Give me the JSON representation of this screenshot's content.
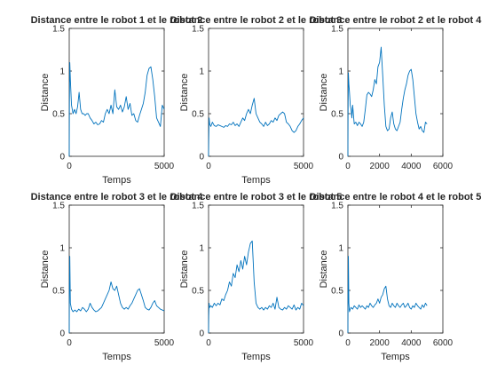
{
  "chart_data": [
    {
      "type": "line",
      "title": "Distance entre le robot 1 et le robot 2",
      "xlabel": "Temps",
      "ylabel": "Distance",
      "xlim": [
        0,
        5000
      ],
      "ylim": [
        0,
        1.5
      ],
      "xticks": [
        "0",
        "5000"
      ],
      "yticks": [
        "0",
        "0.5",
        "1",
        "1.5"
      ],
      "grid": false,
      "series": [
        {
          "color": "#0072bd",
          "x": [
            0,
            10,
            30,
            60,
            120,
            200,
            280,
            360,
            440,
            520,
            600,
            680,
            760,
            840,
            920,
            1000,
            1100,
            1200,
            1300,
            1400,
            1500,
            1600,
            1700,
            1800,
            1900,
            2000,
            2100,
            2200,
            2300,
            2400,
            2500,
            2600,
            2700,
            2800,
            2900,
            3000,
            3100,
            3200,
            3300,
            3400,
            3500,
            3600,
            3700,
            3800,
            3900,
            4000,
            4100,
            4200,
            4300,
            4400,
            4500,
            4600,
            4700,
            4800,
            4900,
            5000
          ],
          "y": [
            0,
            0.6,
            1.1,
            0.9,
            0.6,
            0.5,
            0.55,
            0.5,
            0.58,
            0.75,
            0.55,
            0.5,
            0.5,
            0.48,
            0.5,
            0.5,
            0.45,
            0.42,
            0.38,
            0.4,
            0.37,
            0.38,
            0.42,
            0.4,
            0.5,
            0.55,
            0.5,
            0.6,
            0.5,
            0.78,
            0.58,
            0.55,
            0.6,
            0.52,
            0.58,
            0.7,
            0.55,
            0.62,
            0.48,
            0.5,
            0.42,
            0.4,
            0.48,
            0.55,
            0.62,
            0.75,
            0.95,
            1.03,
            1.05,
            0.9,
            0.7,
            0.45,
            0.4,
            0.35,
            0.6,
            0.55
          ]
        }
      ]
    },
    {
      "type": "line",
      "title": "Distance entre le robot 2 et le robot 3",
      "xlabel": "Temps",
      "ylabel": "Distance",
      "xlim": [
        0,
        5000
      ],
      "ylim": [
        0,
        1.5
      ],
      "xticks": [
        "0",
        "5000"
      ],
      "yticks": [
        "0",
        "0.5",
        "1",
        "1.5"
      ],
      "grid": false,
      "series": [
        {
          "color": "#0072bd",
          "x": [
            0,
            10,
            30,
            60,
            120,
            200,
            300,
            400,
            500,
            600,
            700,
            800,
            900,
            1000,
            1100,
            1200,
            1300,
            1400,
            1500,
            1600,
            1700,
            1800,
            1900,
            2000,
            2100,
            2200,
            2300,
            2400,
            2500,
            2600,
            2700,
            2800,
            2900,
            3000,
            3100,
            3200,
            3300,
            3400,
            3500,
            3600,
            3700,
            3800,
            3900,
            4000,
            4100,
            4200,
            4300,
            4400,
            4500,
            4600,
            4700,
            4800,
            4900,
            5000
          ],
          "y": [
            0,
            0.2,
            0.45,
            0.38,
            0.35,
            0.4,
            0.36,
            0.35,
            0.37,
            0.36,
            0.35,
            0.34,
            0.36,
            0.35,
            0.38,
            0.37,
            0.4,
            0.36,
            0.38,
            0.35,
            0.4,
            0.45,
            0.42,
            0.5,
            0.55,
            0.5,
            0.6,
            0.68,
            0.5,
            0.45,
            0.4,
            0.38,
            0.35,
            0.4,
            0.36,
            0.38,
            0.42,
            0.4,
            0.45,
            0.42,
            0.48,
            0.5,
            0.52,
            0.5,
            0.4,
            0.38,
            0.35,
            0.3,
            0.28,
            0.3,
            0.35,
            0.38,
            0.42,
            0.45
          ]
        }
      ]
    },
    {
      "type": "line",
      "title": "Distance entre le robot 2 et le robot 4",
      "xlabel": "",
      "ylabel": "Distance",
      "xlim": [
        0,
        6000
      ],
      "ylim": [
        0,
        1.5
      ],
      "xticks": [
        "0",
        "2000",
        "4000",
        "6000"
      ],
      "yticks": [
        "0",
        "0.5",
        "1",
        "1.5"
      ],
      "grid": false,
      "series": [
        {
          "color": "#0072bd",
          "x": [
            0,
            10,
            30,
            60,
            100,
            150,
            200,
            250,
            300,
            400,
            500,
            600,
            700,
            800,
            900,
            1000,
            1100,
            1200,
            1300,
            1400,
            1500,
            1600,
            1700,
            1800,
            1900,
            2000,
            2100,
            2200,
            2300,
            2400,
            2500,
            2600,
            2700,
            2800,
            2900,
            3000,
            3100,
            3200,
            3300,
            3400,
            3500,
            3600,
            3700,
            3800,
            3900,
            4000,
            4100,
            4200,
            4300,
            4400,
            4500,
            4600,
            4700,
            4800,
            4900,
            5000
          ],
          "y": [
            0,
            0.5,
            0.98,
            0.85,
            0.75,
            0.6,
            0.55,
            0.45,
            0.6,
            0.38,
            0.4,
            0.36,
            0.4,
            0.38,
            0.35,
            0.4,
            0.55,
            0.72,
            0.75,
            0.73,
            0.7,
            0.78,
            0.9,
            0.85,
            1.05,
            1.1,
            1.28,
            0.95,
            0.6,
            0.35,
            0.3,
            0.32,
            0.45,
            0.52,
            0.38,
            0.32,
            0.3,
            0.35,
            0.4,
            0.55,
            0.68,
            0.78,
            0.85,
            0.95,
            1.0,
            1.02,
            0.9,
            0.7,
            0.5,
            0.4,
            0.32,
            0.35,
            0.3,
            0.28,
            0.4,
            0.38
          ]
        }
      ]
    },
    {
      "type": "line",
      "title": "Distance entre le robot 3 et le robot 4",
      "xlabel": "Temps",
      "ylabel": "Distance",
      "xlim": [
        0,
        5000
      ],
      "ylim": [
        0,
        1.5
      ],
      "xticks": [
        "0",
        "5000"
      ],
      "yticks": [
        "0",
        "0.5",
        "1",
        "1.5"
      ],
      "grid": false,
      "series": [
        {
          "color": "#0072bd",
          "x": [
            0,
            10,
            30,
            60,
            120,
            200,
            300,
            400,
            500,
            600,
            700,
            800,
            900,
            1000,
            1100,
            1200,
            1300,
            1400,
            1500,
            1600,
            1700,
            1800,
            1900,
            2000,
            2100,
            2200,
            2300,
            2400,
            2500,
            2600,
            2700,
            2800,
            2900,
            3000,
            3100,
            3200,
            3300,
            3400,
            3500,
            3600,
            3700,
            3800,
            3900,
            4000,
            4100,
            4200,
            4300,
            4400,
            4500,
            4600,
            4700,
            4800,
            4900,
            5000
          ],
          "y": [
            0,
            0.5,
            0.9,
            0.35,
            0.28,
            0.25,
            0.27,
            0.25,
            0.28,
            0.26,
            0.3,
            0.28,
            0.25,
            0.28,
            0.35,
            0.3,
            0.27,
            0.25,
            0.26,
            0.28,
            0.3,
            0.35,
            0.4,
            0.45,
            0.5,
            0.6,
            0.52,
            0.5,
            0.55,
            0.45,
            0.35,
            0.3,
            0.28,
            0.3,
            0.28,
            0.32,
            0.35,
            0.4,
            0.45,
            0.5,
            0.52,
            0.45,
            0.38,
            0.3,
            0.28,
            0.27,
            0.3,
            0.35,
            0.38,
            0.32,
            0.3,
            0.28,
            0.27,
            0.26
          ]
        }
      ]
    },
    {
      "type": "line",
      "title": "Distance entre le robot 3 et le robot 5",
      "xlabel": "Temps",
      "ylabel": "Distance",
      "xlim": [
        0,
        5000
      ],
      "ylim": [
        0,
        1.5
      ],
      "xticks": [
        "0",
        "5000"
      ],
      "yticks": [
        "0",
        "0.5",
        "1",
        "1.5"
      ],
      "grid": false,
      "series": [
        {
          "color": "#0072bd",
          "x": [
            0,
            10,
            30,
            60,
            120,
            200,
            300,
            400,
            500,
            600,
            700,
            800,
            900,
            1000,
            1100,
            1200,
            1300,
            1400,
            1500,
            1600,
            1700,
            1800,
            1900,
            2000,
            2100,
            2200,
            2300,
            2400,
            2500,
            2600,
            2700,
            2800,
            2900,
            3000,
            3100,
            3200,
            3300,
            3400,
            3500,
            3600,
            3700,
            3800,
            3900,
            4000,
            4100,
            4200,
            4300,
            4400,
            4500,
            4600,
            4700,
            4800,
            4900,
            5000
          ],
          "y": [
            0,
            0.2,
            0.35,
            0.3,
            0.32,
            0.3,
            0.35,
            0.32,
            0.35,
            0.33,
            0.4,
            0.38,
            0.45,
            0.5,
            0.6,
            0.55,
            0.7,
            0.65,
            0.8,
            0.72,
            0.85,
            0.75,
            0.9,
            0.8,
            0.95,
            1.05,
            1.08,
            0.6,
            0.35,
            0.3,
            0.28,
            0.3,
            0.27,
            0.3,
            0.28,
            0.32,
            0.3,
            0.35,
            0.28,
            0.42,
            0.3,
            0.28,
            0.27,
            0.3,
            0.28,
            0.32,
            0.3,
            0.28,
            0.33,
            0.27,
            0.3,
            0.28,
            0.35,
            0.32
          ]
        }
      ]
    },
    {
      "type": "line",
      "title": "Distance entre le robot 4 et le robot 5",
      "xlabel": "Temps",
      "ylabel": "Distance",
      "xlim": [
        0,
        6000
      ],
      "ylim": [
        0,
        1.5
      ],
      "xticks": [
        "0",
        "2000",
        "4000",
        "6000"
      ],
      "yticks": [
        "0",
        "0.5",
        "1",
        "1.5"
      ],
      "grid": false,
      "series": [
        {
          "color": "#0072bd",
          "x": [
            0,
            10,
            30,
            60,
            100,
            150,
            200,
            300,
            400,
            500,
            600,
            700,
            800,
            900,
            1000,
            1100,
            1200,
            1300,
            1400,
            1500,
            1600,
            1700,
            1800,
            1900,
            2000,
            2100,
            2200,
            2300,
            2400,
            2500,
            2600,
            2700,
            2800,
            2900,
            3000,
            3100,
            3200,
            3300,
            3400,
            3500,
            3600,
            3700,
            3800,
            3900,
            4000,
            4100,
            4200,
            4300,
            4400,
            4500,
            4600,
            4700,
            4800,
            4900,
            5000
          ],
          "y": [
            0,
            0.4,
            0.9,
            0.35,
            0.25,
            0.28,
            0.3,
            0.28,
            0.32,
            0.3,
            0.28,
            0.33,
            0.3,
            0.32,
            0.3,
            0.28,
            0.32,
            0.3,
            0.35,
            0.32,
            0.3,
            0.33,
            0.35,
            0.4,
            0.35,
            0.42,
            0.45,
            0.52,
            0.55,
            0.4,
            0.32,
            0.3,
            0.35,
            0.32,
            0.3,
            0.35,
            0.32,
            0.3,
            0.33,
            0.35,
            0.3,
            0.32,
            0.35,
            0.3,
            0.28,
            0.32,
            0.3,
            0.35,
            0.32,
            0.3,
            0.28,
            0.33,
            0.3,
            0.35,
            0.32
          ]
        }
      ]
    }
  ]
}
